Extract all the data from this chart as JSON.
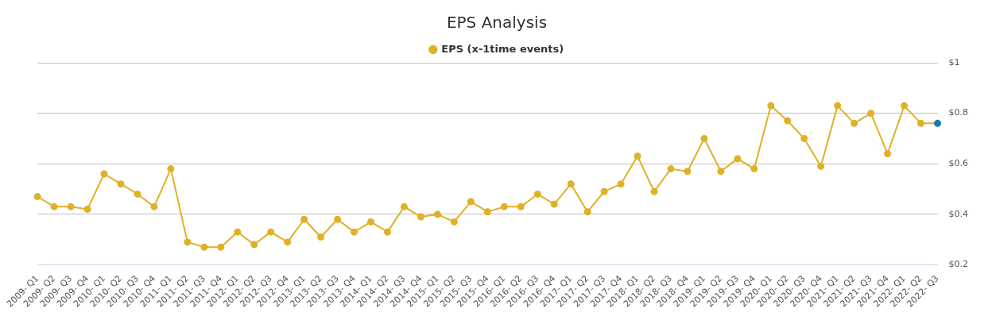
{
  "chart_data": {
    "type": "line",
    "title": "EPS Analysis",
    "categories": [
      "2009- Q1",
      "2009- Q2",
      "2009- Q3",
      "2009- Q4",
      "2010- Q1",
      "2010- Q2",
      "2010- Q3",
      "2010- Q4",
      "2011- Q1",
      "2011- Q2",
      "2011- Q3",
      "2011- Q4",
      "2012- Q1",
      "2012- Q2",
      "2012- Q3",
      "2012- Q4",
      "2013- Q1",
      "2013- Q2",
      "2013- Q3",
      "2013- Q4",
      "2014- Q1",
      "2014- Q2",
      "2014- Q3",
      "2014- Q4",
      "2015- Q1",
      "2015- Q2",
      "2015- Q3",
      "2015- Q4",
      "2016- Q1",
      "2016- Q2",
      "2016- Q3",
      "2016- Q4",
      "2017- Q1",
      "2017- Q2",
      "2017- Q3",
      "2017- Q4",
      "2018- Q1",
      "2018- Q2",
      "2018- Q3",
      "2018- Q4",
      "2019- Q1",
      "2019- Q2",
      "2019- Q3",
      "2019- Q4",
      "2020- Q1",
      "2020- Q2",
      "2020- Q3",
      "2020- Q4",
      "2021- Q1",
      "2021- Q2",
      "2021- Q3",
      "2021- Q4",
      "2022- Q1",
      "2022- Q2",
      "2022- Q3"
    ],
    "series": [
      {
        "name": "EPS (x-1time events)",
        "color": "#e0b026",
        "colors": [
          "#e0b026",
          "#e0b026",
          "#e0b026",
          "#e0b026",
          "#e0b026",
          "#e0b026",
          "#e0b026",
          "#e0b026",
          "#e0b026",
          "#e0b026",
          "#e0b026",
          "#e0b026",
          "#e0b026",
          "#e0b026",
          "#e0b026",
          "#e0b026",
          "#e0b026",
          "#e0b026",
          "#e0b026",
          "#e0b026",
          "#e0b026",
          "#e0b026",
          "#e0b026",
          "#e0b026",
          "#e0b026",
          "#e0b026",
          "#e0b026",
          "#e0b026",
          "#e0b026",
          "#e0b026",
          "#e0b026",
          "#e0b026",
          "#e0b026",
          "#e0b026",
          "#e0b026",
          "#e0b026",
          "#e0b026",
          "#e0b026",
          "#e0b026",
          "#e0b026",
          "#e0b026",
          "#e0b026",
          "#e0b026",
          "#e0b026",
          "#e0b026",
          "#e0b026",
          "#e0b026",
          "#e0b026",
          "#e0b026",
          "#e0b026",
          "#e0b026",
          "#e0b026",
          "#e0b026",
          "#e0b026",
          "#1a78b0"
        ],
        "values": [
          0.47,
          0.43,
          0.43,
          0.42,
          0.56,
          0.52,
          0.48,
          0.43,
          0.58,
          0.29,
          0.27,
          0.27,
          0.33,
          0.28,
          0.33,
          0.29,
          0.38,
          0.31,
          0.38,
          0.33,
          0.37,
          0.33,
          0.43,
          0.39,
          0.4,
          0.37,
          0.45,
          0.41,
          0.43,
          0.43,
          0.48,
          0.44,
          0.52,
          0.41,
          0.49,
          0.52,
          0.63,
          0.49,
          0.58,
          0.57,
          0.7,
          0.57,
          0.62,
          0.58,
          0.83,
          0.77,
          0.7,
          0.59,
          0.83,
          0.76,
          0.8,
          0.64,
          0.83,
          0.76,
          0.76
        ]
      }
    ],
    "ylim": [
      0.2,
      1
    ],
    "yticks": [
      {
        "value": 0.2,
        "label": "$0.2"
      },
      {
        "value": 0.4,
        "label": "$0.4"
      },
      {
        "value": 0.6,
        "label": "$0.6"
      },
      {
        "value": 0.8,
        "label": "$0.8"
      },
      {
        "value": 1,
        "label": "$1"
      }
    ],
    "grid": "y",
    "legend": "top",
    "marker": "circle",
    "line_style": "solid"
  }
}
